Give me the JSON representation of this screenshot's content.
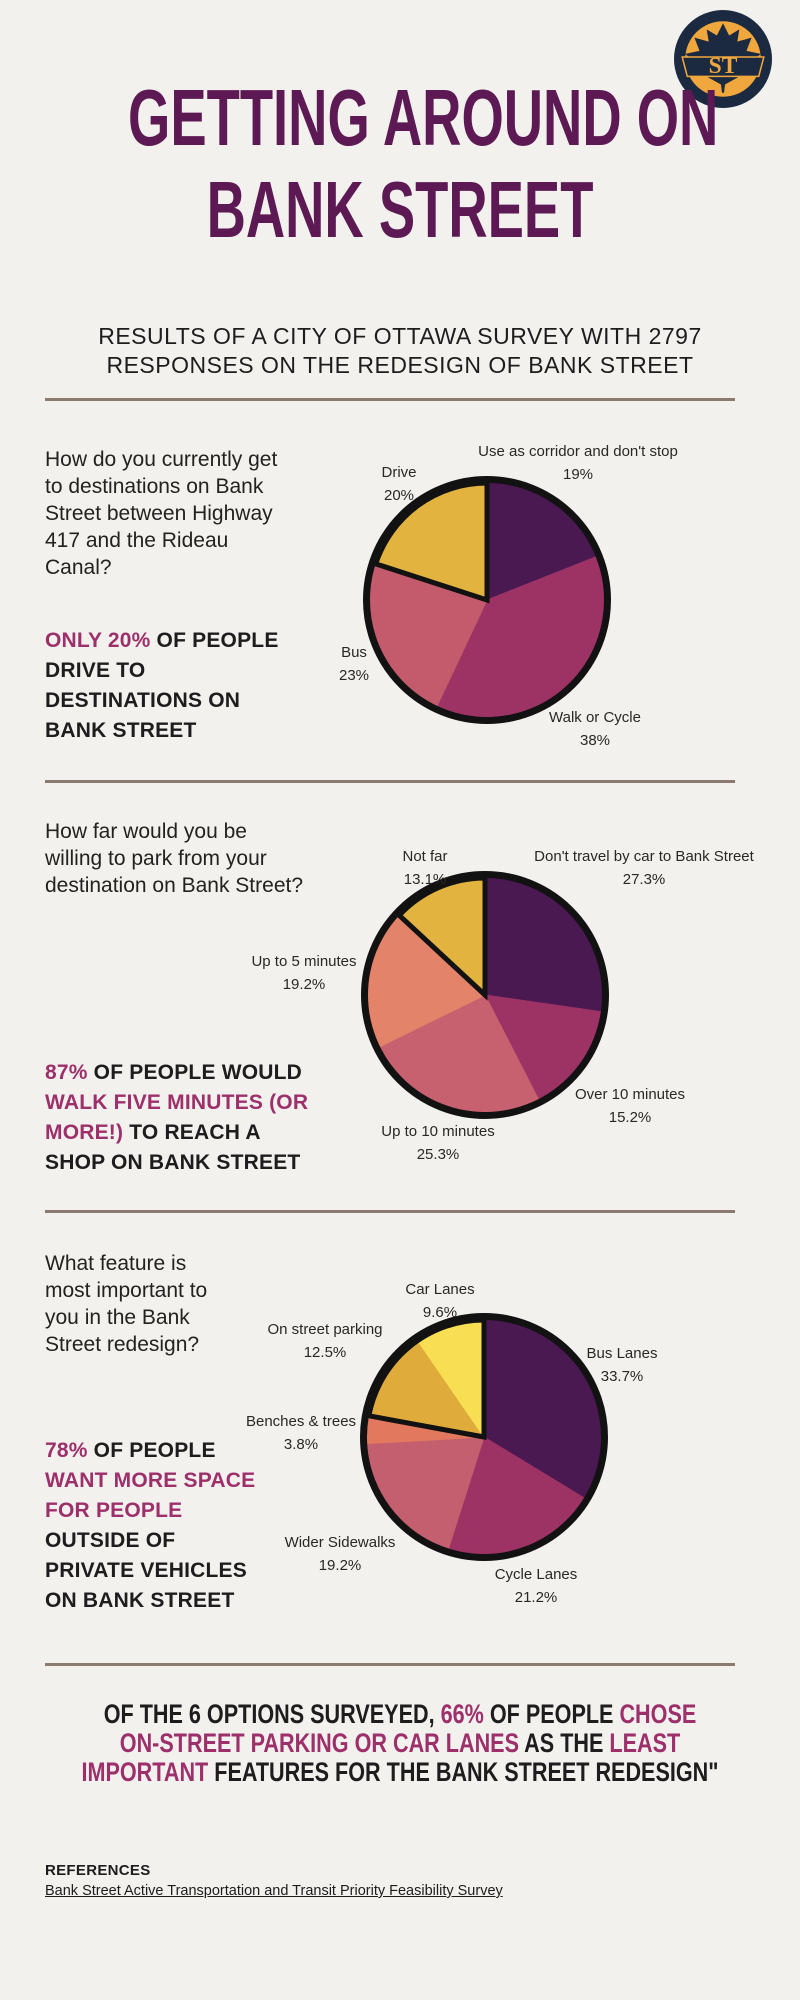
{
  "page": {
    "background": "#f2f1ee",
    "accent": "#9d2f6a",
    "title_color": "#5c1954",
    "divider_color": "#8b7a6f"
  },
  "logo": {
    "text": "ST",
    "navy": "#1b2a40",
    "orange": "#f0a73d"
  },
  "header": {
    "title_line1": "GETTING AROUND ON",
    "title_line2": "BANK STREET",
    "subtitle": "RESULTS OF A CITY OF OTTAWA SURVEY WITH 2797\nRESPONSES ON THE REDESIGN OF BANK STREET"
  },
  "sections": [
    {
      "question": "How do you currently get\nto destinations on Bank\nStreet between Highway\n417 and the Rideau\nCanal?",
      "callout": [
        {
          "text": "ONLY 20%",
          "accent": true
        },
        {
          "text": " OF PEOPLE\nDRIVE TO\nDESTINATIONS ON\nBANK STREET",
          "accent": false
        }
      ]
    },
    {
      "question": "How far would you be\nwilling to park from your\ndestination on Bank Street?",
      "callout": [
        {
          "text": "87%",
          "accent": true
        },
        {
          "text": " OF PEOPLE WOULD\n",
          "accent": false
        },
        {
          "text": "WALK FIVE MINUTES (OR\nMORE!)",
          "accent": true
        },
        {
          "text": " TO REACH A\nSHOP ON BANK STREET",
          "accent": false
        }
      ]
    },
    {
      "question": "What feature is\nmost important to\nyou in the Bank\nStreet redesign?",
      "callout": [
        {
          "text": "78%",
          "accent": true
        },
        {
          "text": " OF PEOPLE\n",
          "accent": false
        },
        {
          "text": "WANT MORE SPACE\nFOR PEOPLE",
          "accent": true
        },
        {
          "text": "\nOUTSIDE OF\nPRIVATE VEHICLES\nON BANK STREET",
          "accent": false
        }
      ]
    }
  ],
  "chart_data": [
    {
      "type": "pie",
      "title": "How do you currently get to destinations on Bank Street between Highway 417 and the Rideau Canal?",
      "start_angle_deg": 0,
      "direction": "clockwise",
      "slices": [
        {
          "label": "Use as corridor and don't stop",
          "pct_label": "19%",
          "value": 19,
          "color": "#4b1951",
          "black_border": false
        },
        {
          "label": "Walk or Cycle",
          "pct_label": "38%",
          "value": 38,
          "color": "#9d3365",
          "black_border": false
        },
        {
          "label": "Bus",
          "pct_label": "23%",
          "value": 23,
          "color": "#c35b6c",
          "black_border": false
        },
        {
          "label": "Drive",
          "pct_label": "20%",
          "value": 20,
          "color": "#e2b33e",
          "black_border": true
        }
      ]
    },
    {
      "type": "pie",
      "title": "How far would you be willing to park from your destination on Bank Street?",
      "start_angle_deg": 0,
      "direction": "clockwise",
      "slices": [
        {
          "label": "Don't travel by car to Bank Street",
          "pct_label": "27.3%",
          "value": 27.3,
          "color": "#4b1951",
          "black_border": false
        },
        {
          "label": "Over 10 minutes",
          "pct_label": "15.2%",
          "value": 15.2,
          "color": "#9d3365",
          "black_border": false
        },
        {
          "label": "Up to 10 minutes",
          "pct_label": "25.3%",
          "value": 25.3,
          "color": "#c7616f",
          "black_border": false
        },
        {
          "label": "Up to 5 minutes",
          "pct_label": "19.2%",
          "value": 19.2,
          "color": "#e2836a",
          "black_border": false
        },
        {
          "label": "Not far",
          "pct_label": "13.1%",
          "value": 13.1,
          "color": "#e2b33e",
          "black_border": true
        }
      ]
    },
    {
      "type": "pie",
      "title": "What feature is most important to you in the Bank Street redesign?",
      "start_angle_deg": 0,
      "direction": "clockwise",
      "slices": [
        {
          "label": "Bus Lanes",
          "pct_label": "33.7%",
          "value": 33.7,
          "color": "#4b1951",
          "black_border": false
        },
        {
          "label": "Cycle Lanes",
          "pct_label": "21.2%",
          "value": 21.2,
          "color": "#9d3365",
          "black_border": false
        },
        {
          "label": "Wider Sidewalks",
          "pct_label": "19.2%",
          "value": 19.2,
          "color": "#c35f6e",
          "black_border": false
        },
        {
          "label": "Benches & trees",
          "pct_label": "3.8%",
          "value": 3.8,
          "color": "#e2795f",
          "black_border": false
        },
        {
          "label": "On street parking",
          "pct_label": "12.5%",
          "value": 12.5,
          "color": "#dfac3c",
          "black_border": true
        },
        {
          "label": "Car Lanes",
          "pct_label": "9.6%",
          "value": 9.6,
          "color": "#f8de52",
          "black_border": true
        }
      ]
    }
  ],
  "footer": {
    "statement": [
      {
        "text": "OF THE 6 OPTIONS SURVEYED, ",
        "accent": false
      },
      {
        "text": "66%",
        "accent": true
      },
      {
        "text": " OF PEOPLE ",
        "accent": false
      },
      {
        "text": "CHOSE\nON-STREET PARKING OR CAR LANES",
        "accent": true
      },
      {
        "text": " AS THE ",
        "accent": false
      },
      {
        "text": "LEAST\nIMPORTANT",
        "accent": true
      },
      {
        "text": " FEATURES FOR THE BANK STREET REDESIGN\"",
        "accent": false
      }
    ],
    "references_label": "REFERENCES",
    "references_link": "Bank Street Active Transportation and Transit Priority Feasibility Survey"
  }
}
